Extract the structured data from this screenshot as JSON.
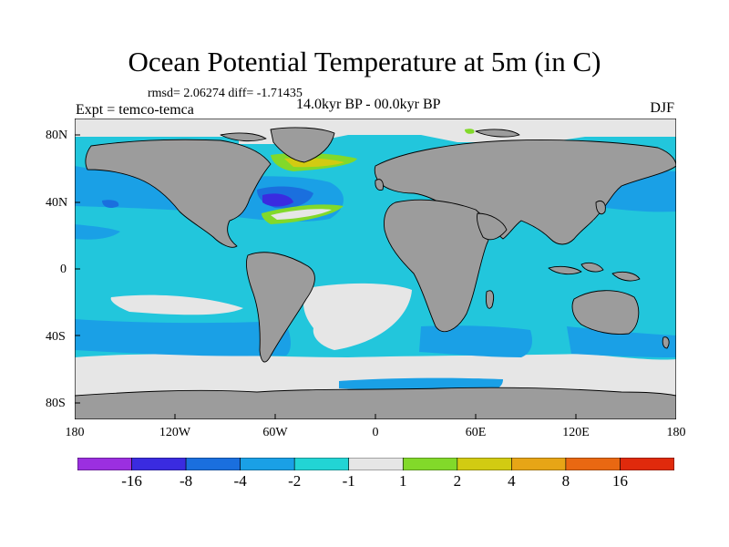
{
  "title": "Ocean Potential Temperature at 5m (in C)",
  "stats": "rmsd= 2.06274 diff= -1.71435",
  "experiment": "Expt = temco-temca",
  "period": "14.0kyr BP - 00.0kyr BP",
  "season": "DJF",
  "lat_labels": [
    "80N",
    "40N",
    "0",
    "40S",
    "80S"
  ],
  "lon_labels": [
    "180",
    "120W",
    "60W",
    "0",
    "60E",
    "120E",
    "180"
  ],
  "colorbar": {
    "colors": [
      "#9b2fe0",
      "#3a2be0",
      "#1a6fde",
      "#1aa0e6",
      "#22d4d4",
      "#e6e6e6",
      "#82d92a",
      "#d2cb12",
      "#e7a516",
      "#e96812",
      "#e02a0c"
    ],
    "labels": [
      "-16",
      "-8",
      "-4",
      "-2",
      "-1",
      "1",
      "2",
      "4",
      "8",
      "16"
    ]
  },
  "colors": {
    "land": "#9c9c9c",
    "ocean_default": "#22c6dc",
    "coastline": "#000000"
  }
}
